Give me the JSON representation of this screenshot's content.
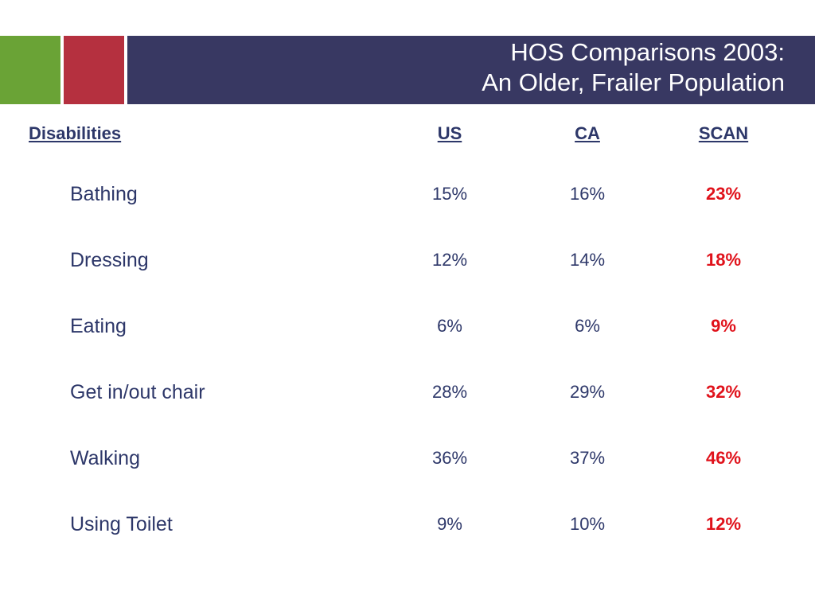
{
  "title": {
    "line1": "HOS Comparisons 2003:",
    "line2": "An Older, Frailer Population"
  },
  "colors": {
    "navy": "#383862",
    "green": "#6aa336",
    "red": "#b5303f",
    "scan_value": "#e0121b",
    "text": "#2d3769"
  },
  "table": {
    "headers": {
      "disabilities": "Disabilities",
      "us": "US",
      "ca": "CA",
      "scan": "SCAN"
    },
    "rows": [
      {
        "label": "Bathing",
        "us": "15%",
        "ca": "16%",
        "scan": "23%"
      },
      {
        "label": "Dressing",
        "us": "12%",
        "ca": "14%",
        "scan": "18%"
      },
      {
        "label": "Eating",
        "us": "6%",
        "ca": "6%",
        "scan": "9%"
      },
      {
        "label": "Get in/out chair",
        "us": "28%",
        "ca": "29%",
        "scan": "32%"
      },
      {
        "label": "Walking",
        "us": "36%",
        "ca": "37%",
        "scan": "46%"
      },
      {
        "label": "Using Toilet",
        "us": "9%",
        "ca": "10%",
        "scan": "12%"
      }
    ]
  }
}
